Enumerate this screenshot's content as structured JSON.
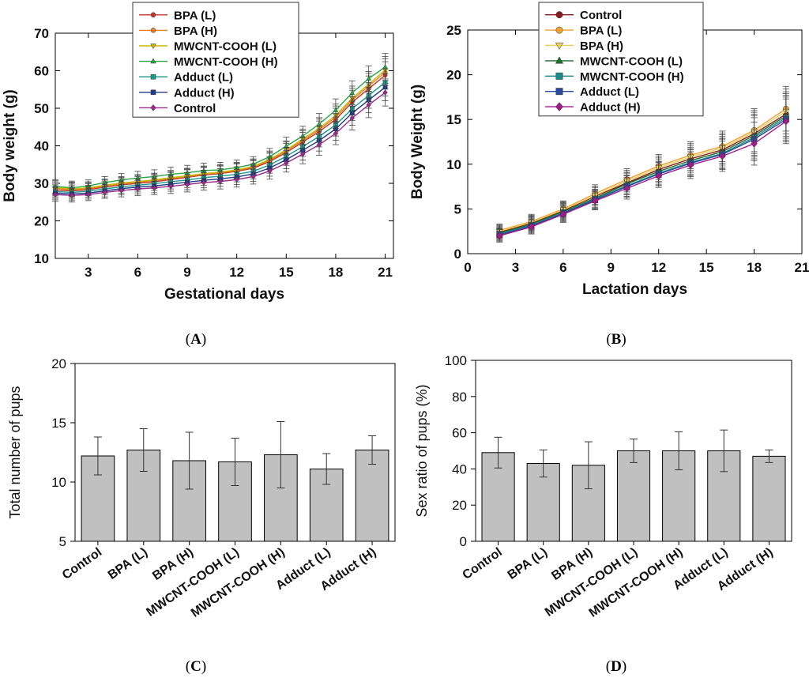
{
  "chart_data": [
    {
      "panel": "(A)",
      "panel_letter": "A",
      "type": "line",
      "xlabel": "Gestational days",
      "ylabel": "Body weight (g)",
      "xlim": [
        1,
        21.5
      ],
      "ylim": [
        10,
        70
      ],
      "xticks": [
        3,
        6,
        9,
        12,
        15,
        18,
        21
      ],
      "yticks": [
        10,
        20,
        30,
        40,
        50,
        60,
        70
      ],
      "x": [
        1,
        2,
        3,
        4,
        5,
        6,
        7,
        8,
        9,
        10,
        11,
        12,
        13,
        14,
        15,
        16,
        17,
        18,
        19,
        20,
        21
      ],
      "legend_position": "top-left",
      "series": [
        {
          "name": "BPA (L)",
          "color": "#c0392b",
          "marker": "circle",
          "values": [
            28.2,
            28.0,
            28.3,
            29.0,
            29.6,
            30.0,
            30.4,
            31.0,
            31.6,
            32.2,
            32.6,
            33.2,
            34.0,
            35.8,
            38.2,
            41.0,
            43.8,
            47.0,
            51.6,
            55.2,
            58.8
          ],
          "err": [
            1.8,
            1.8,
            1.6,
            1.6,
            1.7,
            1.8,
            1.8,
            1.9,
            2.0,
            2.0,
            2.0,
            2.0,
            2.0,
            2.2,
            2.4,
            2.6,
            2.8,
            3.0,
            3.2,
            3.4,
            3.6
          ]
        },
        {
          "name": "BPA (H)",
          "color": "#e67e22",
          "marker": "circle",
          "values": [
            28.6,
            28.3,
            28.6,
            29.3,
            29.9,
            30.3,
            30.7,
            31.3,
            31.8,
            32.4,
            32.8,
            33.4,
            34.3,
            36.1,
            38.6,
            41.4,
            44.3,
            47.6,
            52.2,
            55.9,
            59.6
          ],
          "err": [
            1.8,
            1.8,
            1.6,
            1.6,
            1.7,
            1.8,
            1.8,
            1.9,
            2.0,
            2.0,
            2.0,
            2.0,
            2.0,
            2.2,
            2.4,
            2.6,
            2.8,
            3.0,
            3.2,
            3.4,
            3.6
          ]
        },
        {
          "name": "MWCNT-COOH (L)",
          "color": "#c9b800",
          "marker": "triangle-down",
          "values": [
            28.9,
            28.5,
            28.8,
            29.5,
            30.1,
            30.5,
            30.9,
            31.5,
            32.0,
            32.6,
            33.0,
            33.6,
            34.5,
            36.4,
            38.9,
            41.8,
            44.7,
            48.1,
            52.7,
            56.4,
            60.2
          ],
          "err": [
            1.8,
            1.8,
            1.6,
            1.6,
            1.7,
            1.8,
            1.8,
            1.9,
            2.0,
            2.0,
            2.0,
            2.0,
            2.0,
            2.2,
            2.4,
            2.6,
            2.8,
            3.0,
            3.2,
            3.4,
            3.6
          ]
        },
        {
          "name": "MWCNT-COOH (H)",
          "color": "#27a844",
          "marker": "triangle-up",
          "values": [
            29.2,
            28.8,
            29.3,
            30.2,
            30.9,
            31.4,
            31.8,
            32.4,
            32.8,
            33.4,
            33.6,
            34.2,
            35.1,
            37.1,
            39.9,
            42.6,
            45.8,
            49.5,
            54.1,
            57.9,
            61.0
          ],
          "err": [
            1.8,
            1.8,
            1.6,
            1.6,
            1.7,
            1.8,
            1.8,
            1.9,
            2.0,
            2.0,
            2.0,
            2.0,
            2.0,
            2.2,
            2.4,
            2.6,
            2.8,
            3.0,
            3.2,
            3.4,
            3.6
          ]
        },
        {
          "name": "Adduct (L)",
          "color": "#1a9a8a",
          "marker": "square",
          "values": [
            27.8,
            27.6,
            27.9,
            28.5,
            29.1,
            29.5,
            29.9,
            30.4,
            30.9,
            31.5,
            31.9,
            32.4,
            33.2,
            34.9,
            37.2,
            39.8,
            42.5,
            45.6,
            49.9,
            53.4,
            56.9
          ],
          "err": [
            1.8,
            1.8,
            1.6,
            1.6,
            1.7,
            1.8,
            1.8,
            1.9,
            2.0,
            2.0,
            2.0,
            2.0,
            2.0,
            2.2,
            2.4,
            2.6,
            2.8,
            3.0,
            3.2,
            3.4,
            3.6
          ]
        },
        {
          "name": "Adduct (H)",
          "color": "#1f3a8a",
          "marker": "square",
          "values": [
            27.4,
            27.2,
            27.4,
            28.0,
            28.6,
            29.0,
            29.3,
            29.8,
            30.3,
            30.8,
            31.2,
            31.7,
            32.5,
            34.1,
            36.3,
            38.8,
            41.4,
            44.5,
            48.7,
            52.2,
            55.6
          ],
          "err": [
            1.8,
            1.8,
            1.6,
            1.6,
            1.7,
            1.8,
            1.8,
            1.9,
            2.0,
            2.0,
            2.0,
            2.0,
            2.0,
            2.2,
            2.4,
            2.6,
            2.8,
            3.0,
            3.2,
            3.4,
            3.6
          ]
        },
        {
          "name": "Control",
          "color": "#9b2a8a",
          "marker": "diamond",
          "values": [
            27.0,
            26.8,
            27.0,
            27.6,
            28.1,
            28.5,
            28.8,
            29.2,
            29.7,
            30.2,
            30.5,
            31.0,
            31.8,
            33.3,
            35.4,
            37.8,
            40.3,
            43.3,
            47.4,
            50.9,
            54.2
          ],
          "err": [
            1.8,
            1.8,
            1.6,
            1.6,
            1.7,
            1.8,
            1.8,
            1.9,
            2.0,
            2.0,
            2.0,
            2.0,
            2.0,
            2.2,
            2.4,
            2.6,
            2.8,
            3.0,
            3.2,
            3.4,
            3.6
          ]
        }
      ]
    },
    {
      "panel": "(B)",
      "panel_letter": "B",
      "type": "line",
      "xlabel": "Lactation days",
      "ylabel": "Body Weight (g)",
      "xlim": [
        0,
        21
      ],
      "ylim": [
        0,
        25
      ],
      "xticks": [
        0,
        3,
        6,
        9,
        12,
        15,
        18,
        21
      ],
      "yticks": [
        0,
        5,
        10,
        15,
        20,
        25
      ],
      "x": [
        2,
        4,
        6,
        8,
        10,
        12,
        14,
        16,
        18,
        20
      ],
      "legend_position": "top-left",
      "series": [
        {
          "name": "Control",
          "color": "#8b1a1a",
          "marker": "circle",
          "values": [
            2.4,
            3.4,
            4.8,
            6.4,
            7.9,
            9.4,
            10.6,
            11.6,
            13.4,
            15.6
          ],
          "err": [
            0.7,
            0.8,
            0.9,
            1.0,
            1.2,
            1.3,
            1.5,
            1.7,
            2.4,
            2.5
          ]
        },
        {
          "name": "BPA (L)",
          "color": "#f0a030",
          "marker": "circle",
          "values": [
            2.6,
            3.6,
            5.0,
            6.7,
            8.3,
            9.8,
            11.0,
            12.0,
            13.8,
            16.2
          ],
          "err": [
            0.7,
            0.8,
            0.9,
            1.0,
            1.2,
            1.3,
            1.5,
            1.7,
            2.4,
            2.5
          ]
        },
        {
          "name": "BPA (H)",
          "color": "#e8d060",
          "marker": "triangle-down",
          "values": [
            2.5,
            3.5,
            4.9,
            6.5,
            8.1,
            9.6,
            10.8,
            11.8,
            13.6,
            15.9
          ],
          "err": [
            0.7,
            0.8,
            0.9,
            1.0,
            1.2,
            1.3,
            1.5,
            1.7,
            2.4,
            2.5
          ]
        },
        {
          "name": "MWCNT-COOH (L)",
          "color": "#1e6b2a",
          "marker": "triangle-up",
          "values": [
            2.3,
            3.3,
            4.7,
            6.2,
            7.8,
            9.2,
            10.4,
            11.4,
            13.2,
            15.4
          ],
          "err": [
            0.7,
            0.8,
            0.9,
            1.0,
            1.2,
            1.3,
            1.5,
            1.7,
            2.4,
            2.5
          ]
        },
        {
          "name": "MWCNT-COOH (H)",
          "color": "#1a8a8a",
          "marker": "square",
          "values": [
            2.2,
            3.2,
            4.6,
            6.1,
            7.6,
            9.0,
            10.2,
            11.2,
            13.0,
            15.2
          ],
          "err": [
            0.7,
            0.8,
            0.9,
            1.0,
            1.2,
            1.3,
            1.5,
            1.7,
            2.4,
            2.5
          ]
        },
        {
          "name": "Adduct (L)",
          "color": "#2a4aa0",
          "marker": "square",
          "values": [
            2.1,
            3.1,
            4.5,
            6.0,
            7.5,
            8.9,
            10.1,
            11.1,
            12.8,
            15.0
          ],
          "err": [
            0.7,
            0.8,
            0.9,
            1.0,
            1.2,
            1.3,
            1.5,
            1.7,
            2.4,
            2.5
          ]
        },
        {
          "name": "Adduct (H)",
          "color": "#a01a8a",
          "marker": "diamond",
          "values": [
            2.0,
            3.0,
            4.4,
            5.9,
            7.3,
            8.7,
            9.9,
            10.9,
            12.3,
            14.8
          ],
          "err": [
            0.7,
            0.8,
            0.9,
            1.0,
            1.2,
            1.3,
            1.5,
            1.7,
            2.4,
            2.5
          ]
        }
      ]
    },
    {
      "panel": "(C)",
      "panel_letter": "C",
      "type": "bar",
      "xlabel": "",
      "ylabel": "Total number of pups",
      "ylim": [
        5,
        20
      ],
      "yticks": [
        5,
        10,
        15,
        20
      ],
      "categories": [
        "Control",
        "BPA (L)",
        "BPA (H)",
        "MWCNT-COOH (L)",
        "MWCNT-COOH (H)",
        "Adduct (L)",
        "Adduct (H)"
      ],
      "values": [
        12.2,
        12.7,
        11.8,
        11.7,
        12.3,
        11.1,
        12.7
      ],
      "err": [
        1.6,
        1.8,
        2.4,
        2.0,
        2.8,
        1.3,
        1.2
      ],
      "bar_color": "#c0c0c0"
    },
    {
      "panel": "(D)",
      "panel_letter": "D",
      "type": "bar",
      "xlabel": "",
      "ylabel": "Sex ratio of pups (%)",
      "ylim": [
        0,
        100
      ],
      "yticks": [
        0,
        20,
        40,
        60,
        80,
        100
      ],
      "categories": [
        "Control",
        "BPA (L)",
        "BPA (H)",
        "MWCNT-COOH (L)",
        "MWCNT-COOH (H)",
        "Adduct (L)",
        "Adduct (H)"
      ],
      "values": [
        49,
        43,
        42,
        50,
        50,
        50,
        47
      ],
      "err": [
        8.5,
        7.5,
        13,
        6.5,
        10.5,
        11.5,
        3.5
      ],
      "bar_color": "#c0c0c0"
    }
  ]
}
